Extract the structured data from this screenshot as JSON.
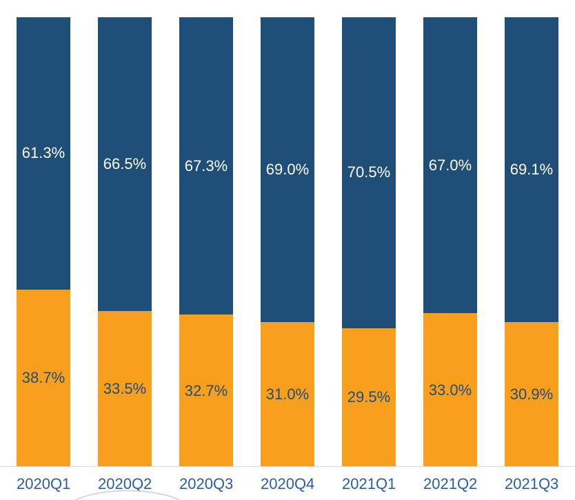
{
  "chart_data": {
    "type": "bar",
    "stacked": true,
    "title": "",
    "xlabel": "",
    "ylabel": "",
    "ylim": [
      0,
      100
    ],
    "grid": false,
    "legend": "none",
    "categories": [
      "2020Q1",
      "2020Q2",
      "2020Q3",
      "2020Q4",
      "2021Q1",
      "2021Q2",
      "2021Q3"
    ],
    "series": [
      {
        "name": "bottom-orange",
        "position": "bottom",
        "color": "#F8A01D",
        "label_color": "#1F4E79",
        "values": [
          38.7,
          33.5,
          32.7,
          31.0,
          29.5,
          33.0,
          30.9
        ],
        "labels": [
          "38.7%",
          "33.5%",
          "32.7%",
          "31.0%",
          "29.5%",
          "33.0%",
          "30.9%"
        ]
      },
      {
        "name": "top-blue",
        "position": "top",
        "color": "#1F4E79",
        "label_color": "#FFFFFF",
        "values": [
          61.3,
          66.5,
          67.3,
          69.0,
          70.5,
          67.0,
          69.1
        ],
        "labels": [
          "61.3%",
          "66.5%",
          "67.3%",
          "69.0%",
          "70.5%",
          "67.0%",
          "69.1%"
        ]
      }
    ]
  },
  "colors": {
    "background": "#FFFFFF",
    "axis_label": "#2A5CA8",
    "baseline": "#D9D9D9",
    "curve": "#CFCFCF"
  }
}
